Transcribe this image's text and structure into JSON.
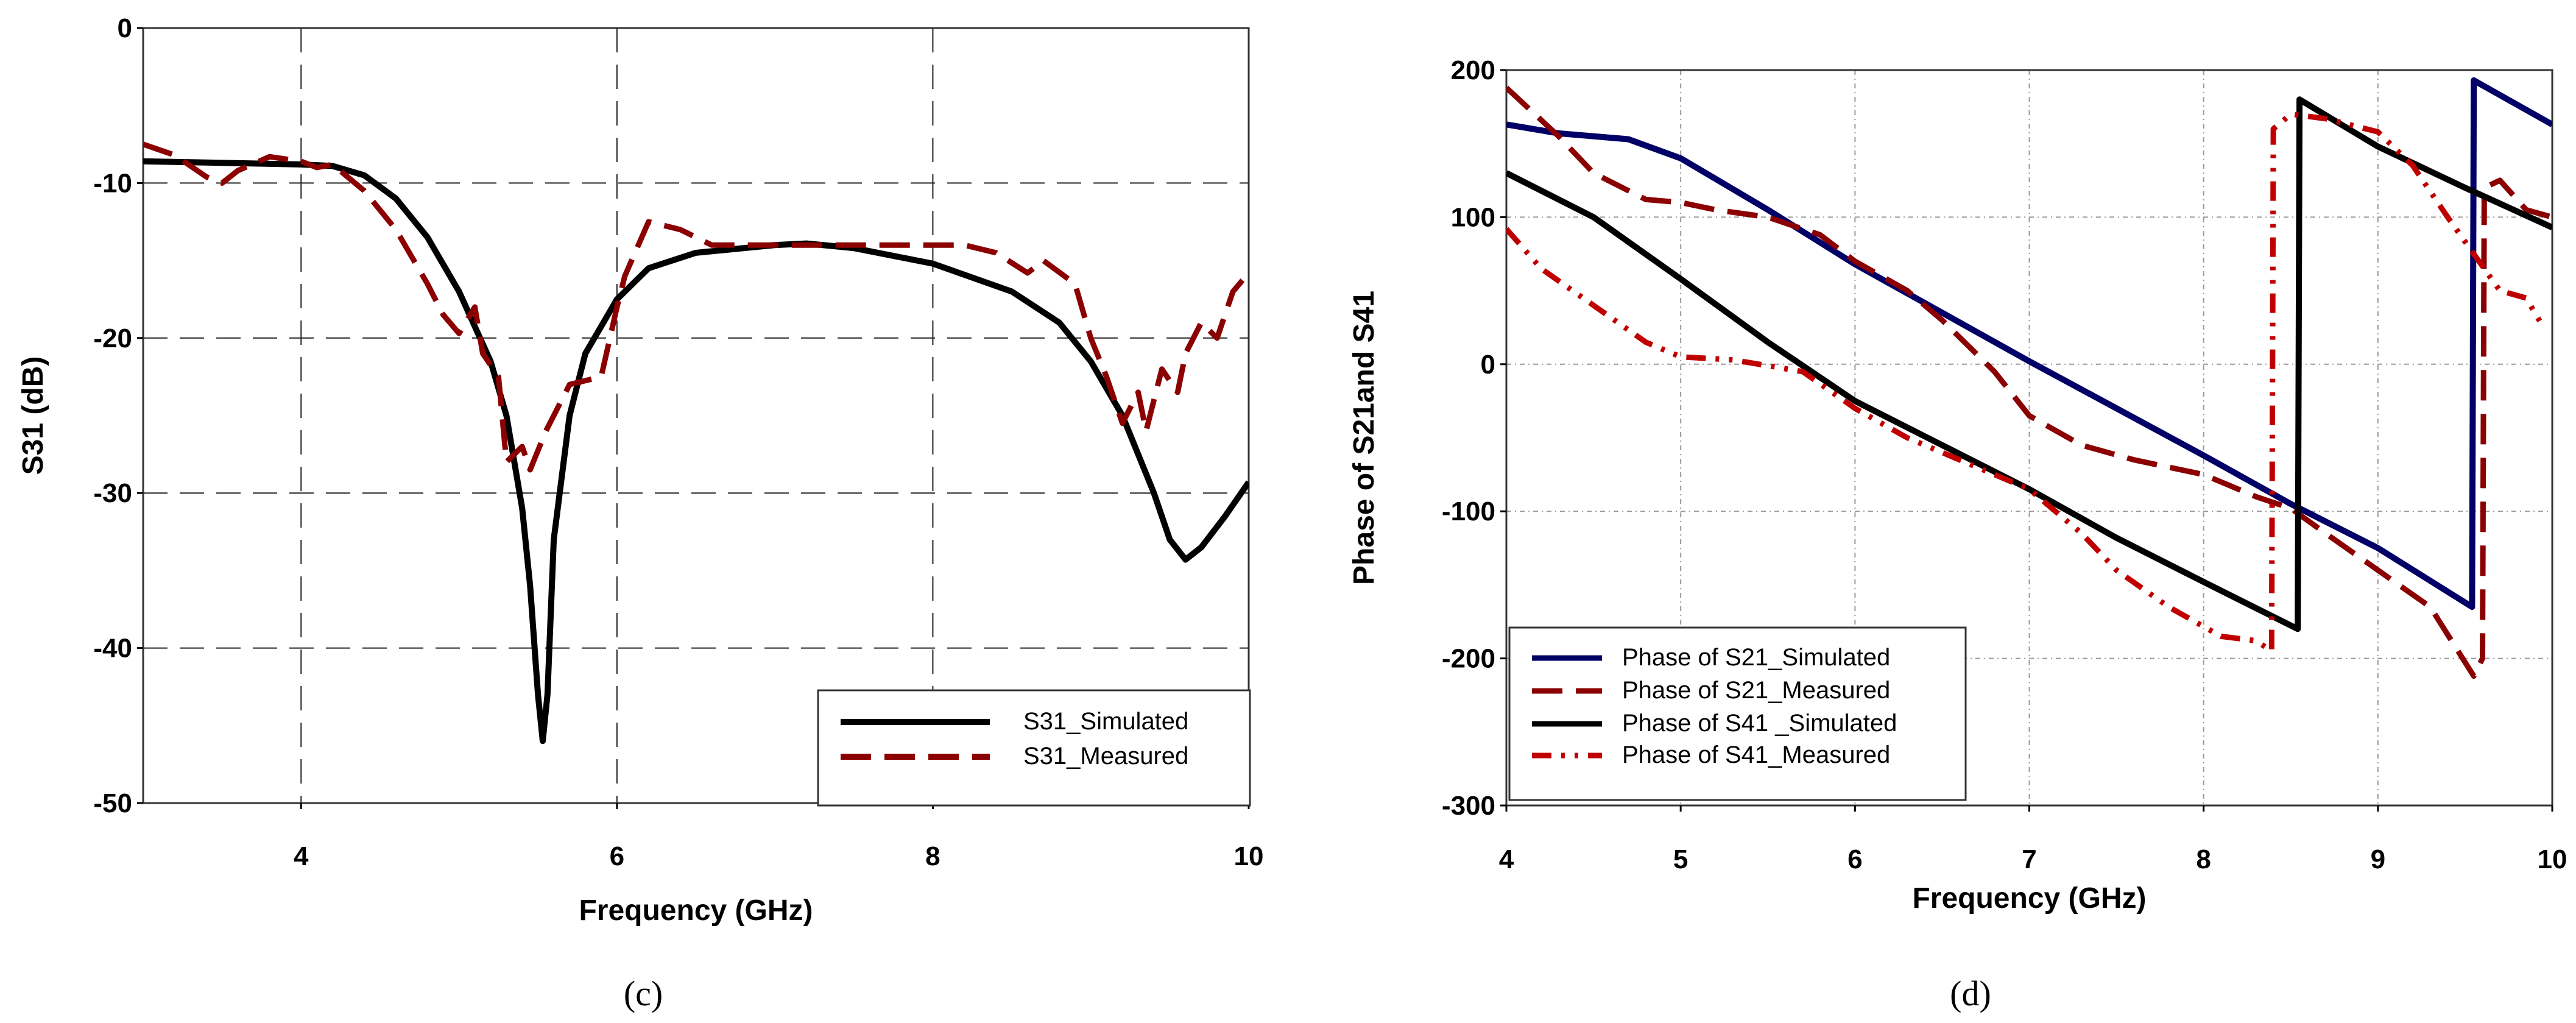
{
  "chart_data": [
    {
      "type": "line",
      "caption": "(c)",
      "xlabel": "Frequency (GHz)",
      "ylabel": "S31 (dB)",
      "xlim": [
        3,
        10
      ],
      "ylim": [
        -50,
        0
      ],
      "xticks": [
        4,
        6,
        8,
        10
      ],
      "yticks": [
        0,
        -10,
        -20,
        -30,
        -40,
        -50
      ],
      "grid": true,
      "legend_position": "bottom-right",
      "series": [
        {
          "name": "S31_Simulated",
          "color": "#000000",
          "style": "solid",
          "x": [
            3,
            3.5,
            4,
            4.2,
            4.4,
            4.6,
            4.8,
            5.0,
            5.2,
            5.3,
            5.4,
            5.45,
            5.5,
            5.53,
            5.56,
            5.6,
            5.7,
            5.8,
            6.0,
            6.2,
            6.5,
            7.0,
            7.2,
            7.5,
            8,
            8.5,
            8.8,
            9,
            9.2,
            9.4,
            9.5,
            9.6,
            9.7,
            9.85,
            10
          ],
          "y": [
            -8.6,
            -8.7,
            -8.8,
            -8.9,
            -9.5,
            -11,
            -13.5,
            -17,
            -21.5,
            -25,
            -31,
            -36,
            -43,
            -46,
            -43,
            -33,
            -25,
            -21,
            -17.5,
            -15.5,
            -14.5,
            -14,
            -13.9,
            -14.2,
            -15.2,
            -17,
            -19,
            -21.5,
            -25,
            -30,
            -33,
            -34.3,
            -33.5,
            -31.5,
            -29.3
          ]
        },
        {
          "name": "S31_Measured",
          "color": "#8b0000",
          "style": "dashed",
          "x": [
            3,
            3.2,
            3.4,
            3.5,
            3.6,
            3.8,
            4,
            4.1,
            4.2,
            4.4,
            4.6,
            4.8,
            4.9,
            5.0,
            5.1,
            5.15,
            5.25,
            5.3,
            5.4,
            5.45,
            5.55,
            5.7,
            5.9,
            6.0,
            6.05,
            6.2,
            6.4,
            6.6,
            7,
            7.5,
            7.8,
            8,
            8.2,
            8.4,
            8.6,
            8.7,
            8.9,
            9.0,
            9.1,
            9.2,
            9.3,
            9.35,
            9.45,
            9.55,
            9.6,
            9.7,
            9.8,
            9.9,
            10
          ],
          "y": [
            -7.5,
            -8.2,
            -9.6,
            -10,
            -9.2,
            -8.3,
            -8.6,
            -9,
            -8.8,
            -10.5,
            -13,
            -16.5,
            -18.5,
            -19.7,
            -18,
            -21,
            -22.5,
            -28,
            -27,
            -28.5,
            -26,
            -23,
            -22.5,
            -18,
            -16,
            -12.5,
            -13,
            -14,
            -14,
            -14,
            -14,
            -14,
            -14,
            -14.5,
            -15.8,
            -15,
            -16.5,
            -20,
            -22.5,
            -25.5,
            -23.5,
            -26,
            -22,
            -23.5,
            -21,
            -19,
            -20,
            -17,
            -15.8
          ]
        }
      ]
    },
    {
      "type": "line",
      "caption": "(d)",
      "xlabel": "Frequency (GHz)",
      "ylabel": "Phase of S21and S41",
      "xlim": [
        4,
        10
      ],
      "ylim": [
        -300,
        200
      ],
      "xticks": [
        4,
        5,
        6,
        7,
        8,
        9,
        10
      ],
      "yticks": [
        200,
        100,
        0,
        -100,
        -200,
        -300
      ],
      "grid": true,
      "legend_position": "bottom-left",
      "series": [
        {
          "name": "Phase of S21_Simulated",
          "color": "#000066",
          "style": "solid",
          "x": [
            4,
            4.3,
            4.7,
            5,
            5.5,
            6,
            6.5,
            7,
            7.5,
            8,
            8.5,
            9,
            9.54,
            9.55,
            10
          ],
          "y": [
            163,
            157,
            153,
            140,
            105,
            68,
            35,
            2,
            -30,
            -62,
            -95,
            -125,
            -165,
            193,
            163
          ]
        },
        {
          "name": "Phase of S21_Measured",
          "color": "#8b0000",
          "style": "dashed",
          "x": [
            4,
            4.3,
            4.5,
            4.8,
            5,
            5.2,
            5.5,
            5.8,
            6,
            6.3,
            6.5,
            6.8,
            7,
            7.3,
            7.6,
            8,
            8.3,
            8.5,
            8.7,
            9,
            9.3,
            9.55,
            9.6,
            9.61,
            9.7,
            9.85,
            10
          ],
          "y": [
            188,
            155,
            130,
            112,
            110,
            105,
            100,
            88,
            70,
            50,
            30,
            -5,
            -35,
            -55,
            -65,
            -75,
            -90,
            -98,
            -115,
            -140,
            -165,
            -212,
            -200,
            120,
            125,
            105,
            100
          ]
        },
        {
          "name": "Phase of S41 _Simulated",
          "color": "#000000",
          "style": "solid",
          "x": [
            4,
            4.5,
            5,
            5.5,
            6,
            6.5,
            7,
            7.5,
            8,
            8.54,
            8.55,
            9,
            9.5,
            10
          ],
          "y": [
            130,
            100,
            58,
            15,
            -25,
            -55,
            -85,
            -118,
            -148,
            -180,
            180,
            148,
            120,
            93
          ]
        },
        {
          "name": "Phase of S41_Measured",
          "color": "#c00000",
          "style": "dashdotdot",
          "x": [
            4,
            4.2,
            4.5,
            4.8,
            5,
            5.3,
            5.7,
            6,
            6.3,
            6.6,
            7,
            7.3,
            7.5,
            7.8,
            8.1,
            8.3,
            8.39,
            8.4,
            8.5,
            8.7,
            9,
            9.2,
            9.4,
            9.55,
            9.7,
            9.85,
            9.95
          ],
          "y": [
            92,
            65,
            40,
            15,
            5,
            3,
            -5,
            -30,
            -50,
            -65,
            -85,
            -115,
            -140,
            -165,
            -185,
            -188,
            -195,
            160,
            170,
            167,
            158,
            135,
            100,
            75,
            50,
            45,
            25
          ]
        }
      ]
    }
  ]
}
